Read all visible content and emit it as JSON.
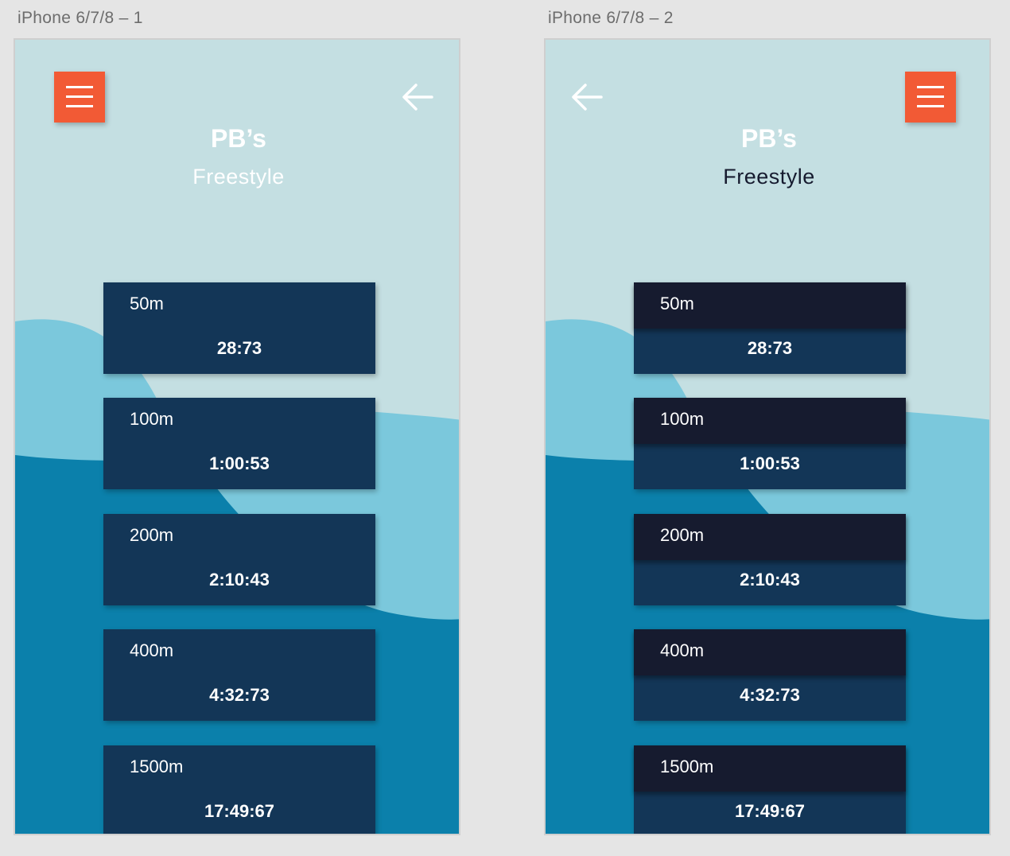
{
  "artboards": [
    {
      "label": "iPhone 6/7/8 – 1",
      "title": "PB’s",
      "subtitle": "Freestyle",
      "menu_icon": "hamburger-menu-icon",
      "back_icon": "arrow-left-icon",
      "records": [
        {
          "distance": "50m",
          "time": "28:73"
        },
        {
          "distance": "100m",
          "time": "1:00:53"
        },
        {
          "distance": "200m",
          "time": "2:10:43"
        },
        {
          "distance": "400m",
          "time": "4:32:73"
        },
        {
          "distance": "1500m",
          "time": "17:49:67"
        }
      ]
    },
    {
      "label": "iPhone 6/7/8 – 2",
      "title": "PB’s",
      "subtitle": "Freestyle",
      "menu_icon": "hamburger-menu-icon",
      "back_icon": "arrow-left-icon",
      "records": [
        {
          "distance": "50m",
          "time": "28:73"
        },
        {
          "distance": "100m",
          "time": "1:00:53"
        },
        {
          "distance": "200m",
          "time": "2:10:43"
        },
        {
          "distance": "400m",
          "time": "4:32:73"
        },
        {
          "distance": "1500m",
          "time": "17:49:67"
        }
      ]
    }
  ],
  "colors": {
    "canvas": "#e5e5e5",
    "sky": "#c4dfe2",
    "light_wave": "#7bc8dc",
    "deep_wave": "#0b80ab",
    "card": "#133657",
    "card_header_dark": "#161b2f",
    "accent": "#f25a35"
  }
}
